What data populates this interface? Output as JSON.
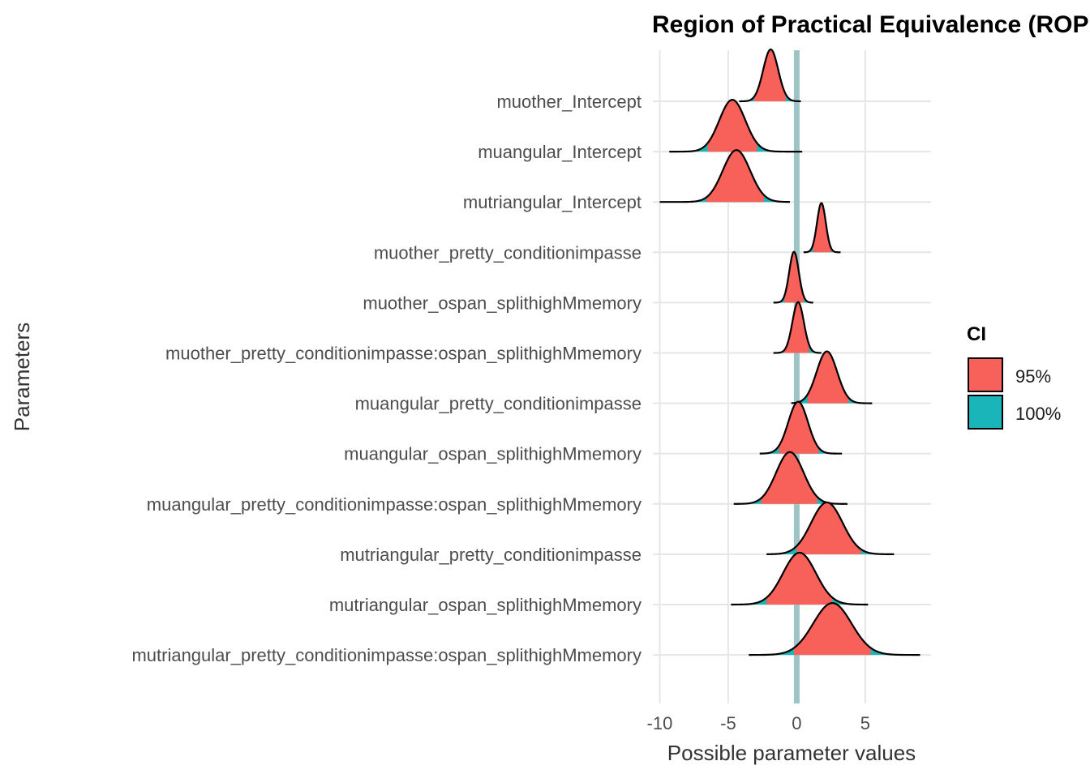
{
  "chart_data": {
    "type": "ridgeline",
    "title": "Region of Practical Equivalence (ROPE)",
    "xlabel": "Possible parameter values",
    "ylabel": "Parameters",
    "xlim": [
      -10.5,
      9.8
    ],
    "xticks": [
      -10,
      -5,
      0,
      5
    ],
    "grid": true,
    "rope": {
      "center": 0,
      "color": "#9fc4c6"
    },
    "legend": {
      "title": "CI",
      "position": "right",
      "items": [
        {
          "label": "95%",
          "color": "#f8605a"
        },
        {
          "label": "100%",
          "color": "#1ab5b8"
        }
      ]
    },
    "series": [
      {
        "name": "muother_Intercept",
        "min": -4.2,
        "max": 0.3,
        "ci95": [
          -3.1,
          -0.8
        ],
        "peak": -1.9,
        "sd": 0.55,
        "height": 1.0
      },
      {
        "name": "muangular_Intercept",
        "min": -9.3,
        "max": 0.4,
        "ci95": [
          -6.5,
          -2.9
        ],
        "peak": -4.7,
        "sd": 0.95,
        "height": 1.0
      },
      {
        "name": "mutriangular_Intercept",
        "min": -10.0,
        "max": -0.5,
        "ci95": [
          -6.6,
          -2.4
        ],
        "peak": -4.4,
        "sd": 1.0,
        "height": 1.0
      },
      {
        "name": "muother_pretty_conditionimpasse",
        "min": 0.5,
        "max": 3.2,
        "ci95": [
          1.2,
          2.5
        ],
        "peak": 1.8,
        "sd": 0.32,
        "height": 0.95
      },
      {
        "name": "muother_ospan_splithighMmemory",
        "min": -1.7,
        "max": 1.2,
        "ci95": [
          -0.9,
          0.5
        ],
        "peak": -0.2,
        "sd": 0.35,
        "height": 0.98
      },
      {
        "name": "muother_pretty_conditionimpasse:ospan_splithighMmemory",
        "min": -1.7,
        "max": 1.8,
        "ci95": [
          -0.9,
          0.9
        ],
        "peak": 0.1,
        "sd": 0.42,
        "height": 0.98
      },
      {
        "name": "muangular_pretty_conditionimpasse",
        "min": -0.4,
        "max": 5.5,
        "ci95": [
          0.8,
          3.8
        ],
        "peak": 2.2,
        "sd": 0.75,
        "height": 1.0
      },
      {
        "name": "muangular_ospan_splithighMmemory",
        "min": -2.7,
        "max": 3.3,
        "ci95": [
          -1.3,
          1.6
        ],
        "peak": 0.1,
        "sd": 0.72,
        "height": 1.0
      },
      {
        "name": "muangular_pretty_conditionimpasse:ospan_splithighMmemory",
        "min": -4.6,
        "max": 3.7,
        "ci95": [
          -2.6,
          1.5
        ],
        "peak": -0.5,
        "sd": 1.0,
        "height": 1.0
      },
      {
        "name": "mutriangular_pretty_conditionimpasse",
        "min": -2.2,
        "max": 7.1,
        "ci95": [
          0.0,
          4.7
        ],
        "peak": 2.2,
        "sd": 1.15,
        "height": 1.0
      },
      {
        "name": "mutriangular_ospan_splithighMmemory",
        "min": -4.8,
        "max": 5.2,
        "ci95": [
          -2.2,
          2.6
        ],
        "peak": 0.2,
        "sd": 1.2,
        "height": 1.0
      },
      {
        "name": "mutriangular_pretty_conditionimpasse:ospan_splithighMmemory",
        "min": -3.5,
        "max": 9.0,
        "ci95": [
          -0.2,
          5.4
        ],
        "peak": 2.6,
        "sd": 1.4,
        "height": 1.0
      }
    ]
  }
}
